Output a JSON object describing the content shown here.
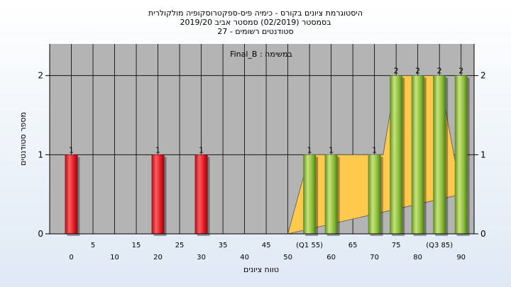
{
  "chart_data": {
    "type": "bar",
    "title_lines": [
      "היסטוגרמת ציונים בקורס - כימיה פיס-ספקטרוסקופיה מולקולרית",
      "בסמסטר  (02/2019)  סמסטר אביב 2019/20",
      "סטודנטים רשומים - 27"
    ],
    "annotation": "Final_B : במשימה",
    "xlabel": "טווח ציונים",
    "ylabel": "מספר סטודנטים",
    "ylim": [
      0,
      2.4
    ],
    "yticks": [
      0,
      1,
      2
    ],
    "xlim": [
      -5,
      93
    ],
    "x_ticks_top": [
      {
        "x": 5,
        "label": "5"
      },
      {
        "x": 15,
        "label": "15"
      },
      {
        "x": 25,
        "label": "25"
      },
      {
        "x": 35,
        "label": "35"
      },
      {
        "x": 45,
        "label": "45"
      },
      {
        "x": 55,
        "label": "(Q1 55)"
      },
      {
        "x": 65,
        "label": "65"
      },
      {
        "x": 75,
        "label": "75"
      },
      {
        "x": 85,
        "label": "(Q3 85)"
      }
    ],
    "x_ticks_bottom": [
      {
        "x": 0,
        "label": "0"
      },
      {
        "x": 10,
        "label": "10"
      },
      {
        "x": 20,
        "label": "20"
      },
      {
        "x": 30,
        "label": "30"
      },
      {
        "x": 40,
        "label": "40"
      },
      {
        "x": 50,
        "label": "50"
      },
      {
        "x": 60,
        "label": "60"
      },
      {
        "x": 70,
        "label": "70"
      },
      {
        "x": 80,
        "label": "80"
      },
      {
        "x": 90,
        "label": "90"
      }
    ],
    "bars": [
      {
        "x": 0,
        "value": 1,
        "label": "1",
        "color": "red"
      },
      {
        "x": 20,
        "value": 1,
        "label": "1",
        "color": "red"
      },
      {
        "x": 30,
        "value": 1,
        "label": "1",
        "color": "red"
      },
      {
        "x": 55,
        "value": 1,
        "label": "1",
        "color": "green"
      },
      {
        "x": 60,
        "value": 1,
        "label": "1",
        "color": "green"
      },
      {
        "x": 70,
        "value": 1,
        "label": "1",
        "color": "green"
      },
      {
        "x": 75,
        "value": 2,
        "label": "2",
        "color": "green"
      },
      {
        "x": 80,
        "value": 2,
        "label": "2",
        "color": "green"
      },
      {
        "x": 85,
        "value": 2,
        "label": "2",
        "color": "green"
      },
      {
        "x": 90,
        "value": 2,
        "label": "2",
        "color": "green"
      }
    ],
    "distribution_area": [
      [
        50,
        0
      ],
      [
        55,
        1
      ],
      [
        72,
        1
      ],
      [
        75,
        2
      ],
      [
        85,
        2
      ],
      [
        90,
        0.5
      ]
    ],
    "grid": true,
    "colors": {
      "plot_bg": "#b4b4b4",
      "area": "#ffc94d",
      "bar_red": "#e8202a",
      "bar_green": "#8cbe3c"
    }
  }
}
